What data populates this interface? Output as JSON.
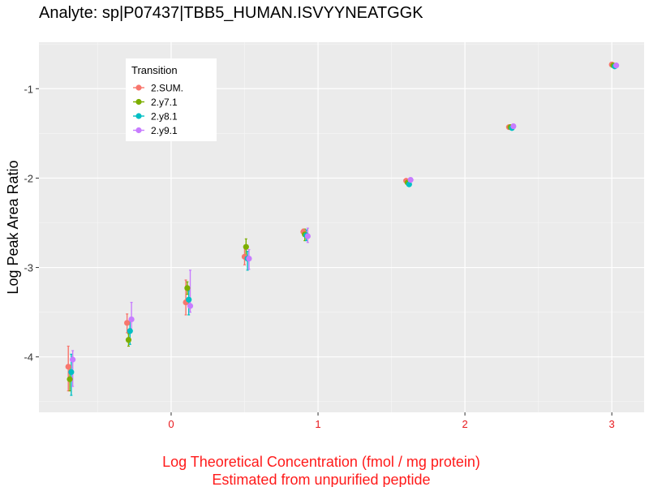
{
  "chart_data": {
    "type": "scatter",
    "title": "Analyte: sp|P07437|TBB5_HUMAN.ISVYYNEATGGK",
    "xlabel_lines": [
      "Log Theoretical Concentration (fmol / mg protein)",
      "Estimated from unpurified peptide"
    ],
    "ylabel": "Log Peak Area Ratio",
    "xlim": [
      -0.9,
      3.22
    ],
    "ylim": [
      -4.62,
      -0.48
    ],
    "x_ticks": [
      0,
      1,
      2,
      3
    ],
    "x_tick_labels": [
      "0",
      "1",
      "2",
      "3"
    ],
    "y_ticks": [
      -4,
      -3,
      -2,
      -1
    ],
    "y_tick_labels": [
      "-4",
      "-3",
      "-2",
      "-1"
    ],
    "grid": true,
    "legend_position": "top-left",
    "legend": {
      "title": "Transition",
      "entries": [
        "2.SUM.",
        "2.y7.1",
        "2.y8.1",
        "2.y9.1"
      ]
    },
    "series": [
      {
        "name": "2.SUM.",
        "color": "#f8766d",
        "points": [
          {
            "x": -0.7,
            "y": -4.11,
            "ymin": -4.38,
            "ymax": -3.88
          },
          {
            "x": -0.3,
            "y": -3.62,
            "ymin": -3.73,
            "ymax": -3.52
          },
          {
            "x": 0.1,
            "y": -3.39,
            "ymin": -3.53,
            "ymax": -3.14
          },
          {
            "x": 0.5,
            "y": -2.88,
            "ymin": -2.97,
            "ymax": -2.78
          },
          {
            "x": 0.9,
            "y": -2.6,
            "ymin": -2.63,
            "ymax": -2.57
          },
          {
            "x": 1.6,
            "y": -2.03,
            "ymin": -2.05,
            "ymax": -2.01
          },
          {
            "x": 2.3,
            "y": -1.43,
            "ymin": -1.45,
            "ymax": -1.41
          },
          {
            "x": 3.0,
            "y": -0.73,
            "ymin": -0.74,
            "ymax": -0.72
          }
        ]
      },
      {
        "name": "2.y7.1",
        "color": "#7cae00",
        "points": [
          {
            "x": -0.69,
            "y": -4.25,
            "ymin": -4.38,
            "ymax": -4.12
          },
          {
            "x": -0.29,
            "y": -3.81,
            "ymin": -3.88,
            "ymax": -3.74
          },
          {
            "x": 0.11,
            "y": -3.23,
            "ymin": -3.3,
            "ymax": -3.16
          },
          {
            "x": 0.51,
            "y": -2.77,
            "ymin": -2.86,
            "ymax": -2.68
          },
          {
            "x": 0.91,
            "y": -2.63,
            "ymin": -2.7,
            "ymax": -2.57
          },
          {
            "x": 1.61,
            "y": -2.05,
            "ymin": -2.08,
            "ymax": -2.02
          },
          {
            "x": 2.31,
            "y": -1.43,
            "ymin": -1.45,
            "ymax": -1.41
          },
          {
            "x": 3.01,
            "y": -0.74,
            "ymin": -0.75,
            "ymax": -0.73
          }
        ]
      },
      {
        "name": "2.y8.1",
        "color": "#00bfc4",
        "points": [
          {
            "x": -0.68,
            "y": -4.17,
            "ymin": -4.43,
            "ymax": -3.97
          },
          {
            "x": -0.28,
            "y": -3.71,
            "ymin": -3.86,
            "ymax": -3.6
          },
          {
            "x": 0.12,
            "y": -3.36,
            "ymin": -3.53,
            "ymax": -3.26
          },
          {
            "x": 0.52,
            "y": -2.9,
            "ymin": -3.03,
            "ymax": -2.82
          },
          {
            "x": 0.92,
            "y": -2.64,
            "ymin": -2.7,
            "ymax": -2.58
          },
          {
            "x": 1.62,
            "y": -2.07,
            "ymin": -2.09,
            "ymax": -2.05
          },
          {
            "x": 2.32,
            "y": -1.44,
            "ymin": -1.46,
            "ymax": -1.42
          },
          {
            "x": 3.02,
            "y": -0.75,
            "ymin": -0.76,
            "ymax": -0.74
          }
        ]
      },
      {
        "name": "2.y9.1",
        "color": "#c77cff",
        "points": [
          {
            "x": -0.67,
            "y": -4.03,
            "ymin": -4.33,
            "ymax": -3.93
          },
          {
            "x": -0.27,
            "y": -3.58,
            "ymin": -3.72,
            "ymax": -3.39
          },
          {
            "x": 0.13,
            "y": -3.43,
            "ymin": -3.5,
            "ymax": -3.03
          },
          {
            "x": 0.53,
            "y": -2.9,
            "ymin": -3.02,
            "ymax": -2.8
          },
          {
            "x": 0.93,
            "y": -2.65,
            "ymin": -2.72,
            "ymax": -2.56
          },
          {
            "x": 1.63,
            "y": -2.02,
            "ymin": -2.04,
            "ymax": -2.0
          },
          {
            "x": 2.33,
            "y": -1.42,
            "ymin": -1.44,
            "ymax": -1.4
          },
          {
            "x": 3.03,
            "y": -0.74,
            "ymin": -0.75,
            "ymax": -0.73
          }
        ]
      }
    ]
  }
}
